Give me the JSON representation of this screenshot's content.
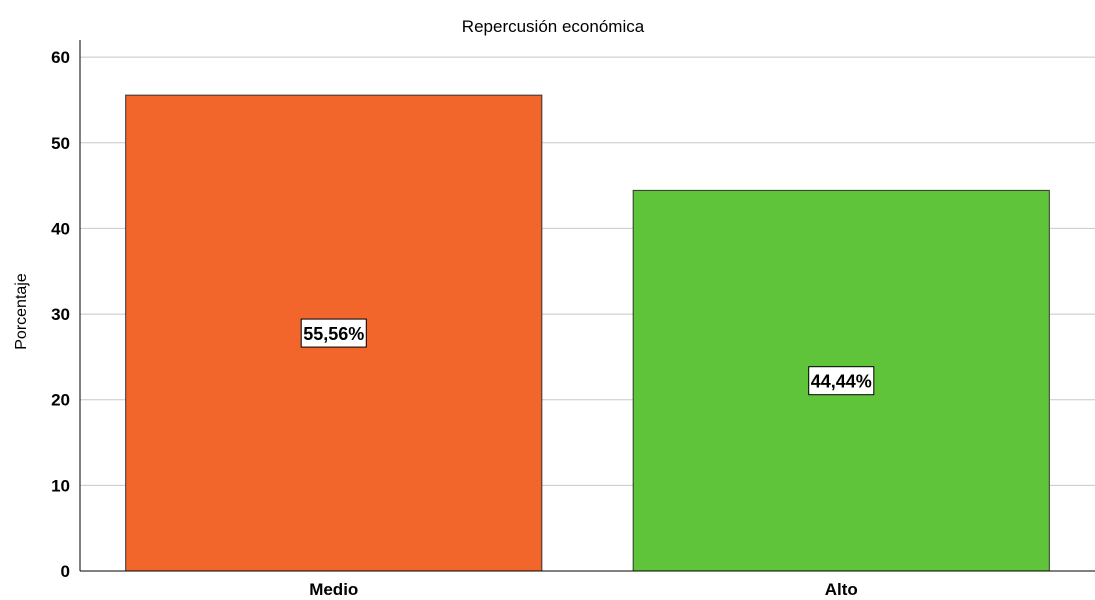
{
  "chart_data": {
    "type": "bar",
    "title": "Repercusión económica",
    "xlabel": "",
    "ylabel": "Porcentaje",
    "categories": [
      "Medio",
      "Alto"
    ],
    "values": [
      55.56,
      44.44
    ],
    "data_labels": [
      "55,56%",
      "44,44%"
    ],
    "colors": [
      "#f2662b",
      "#5fc43a"
    ],
    "ylim": [
      0,
      62
    ],
    "yticks": [
      0,
      10,
      20,
      30,
      40,
      50,
      60
    ],
    "grid": true,
    "legend": "none"
  }
}
